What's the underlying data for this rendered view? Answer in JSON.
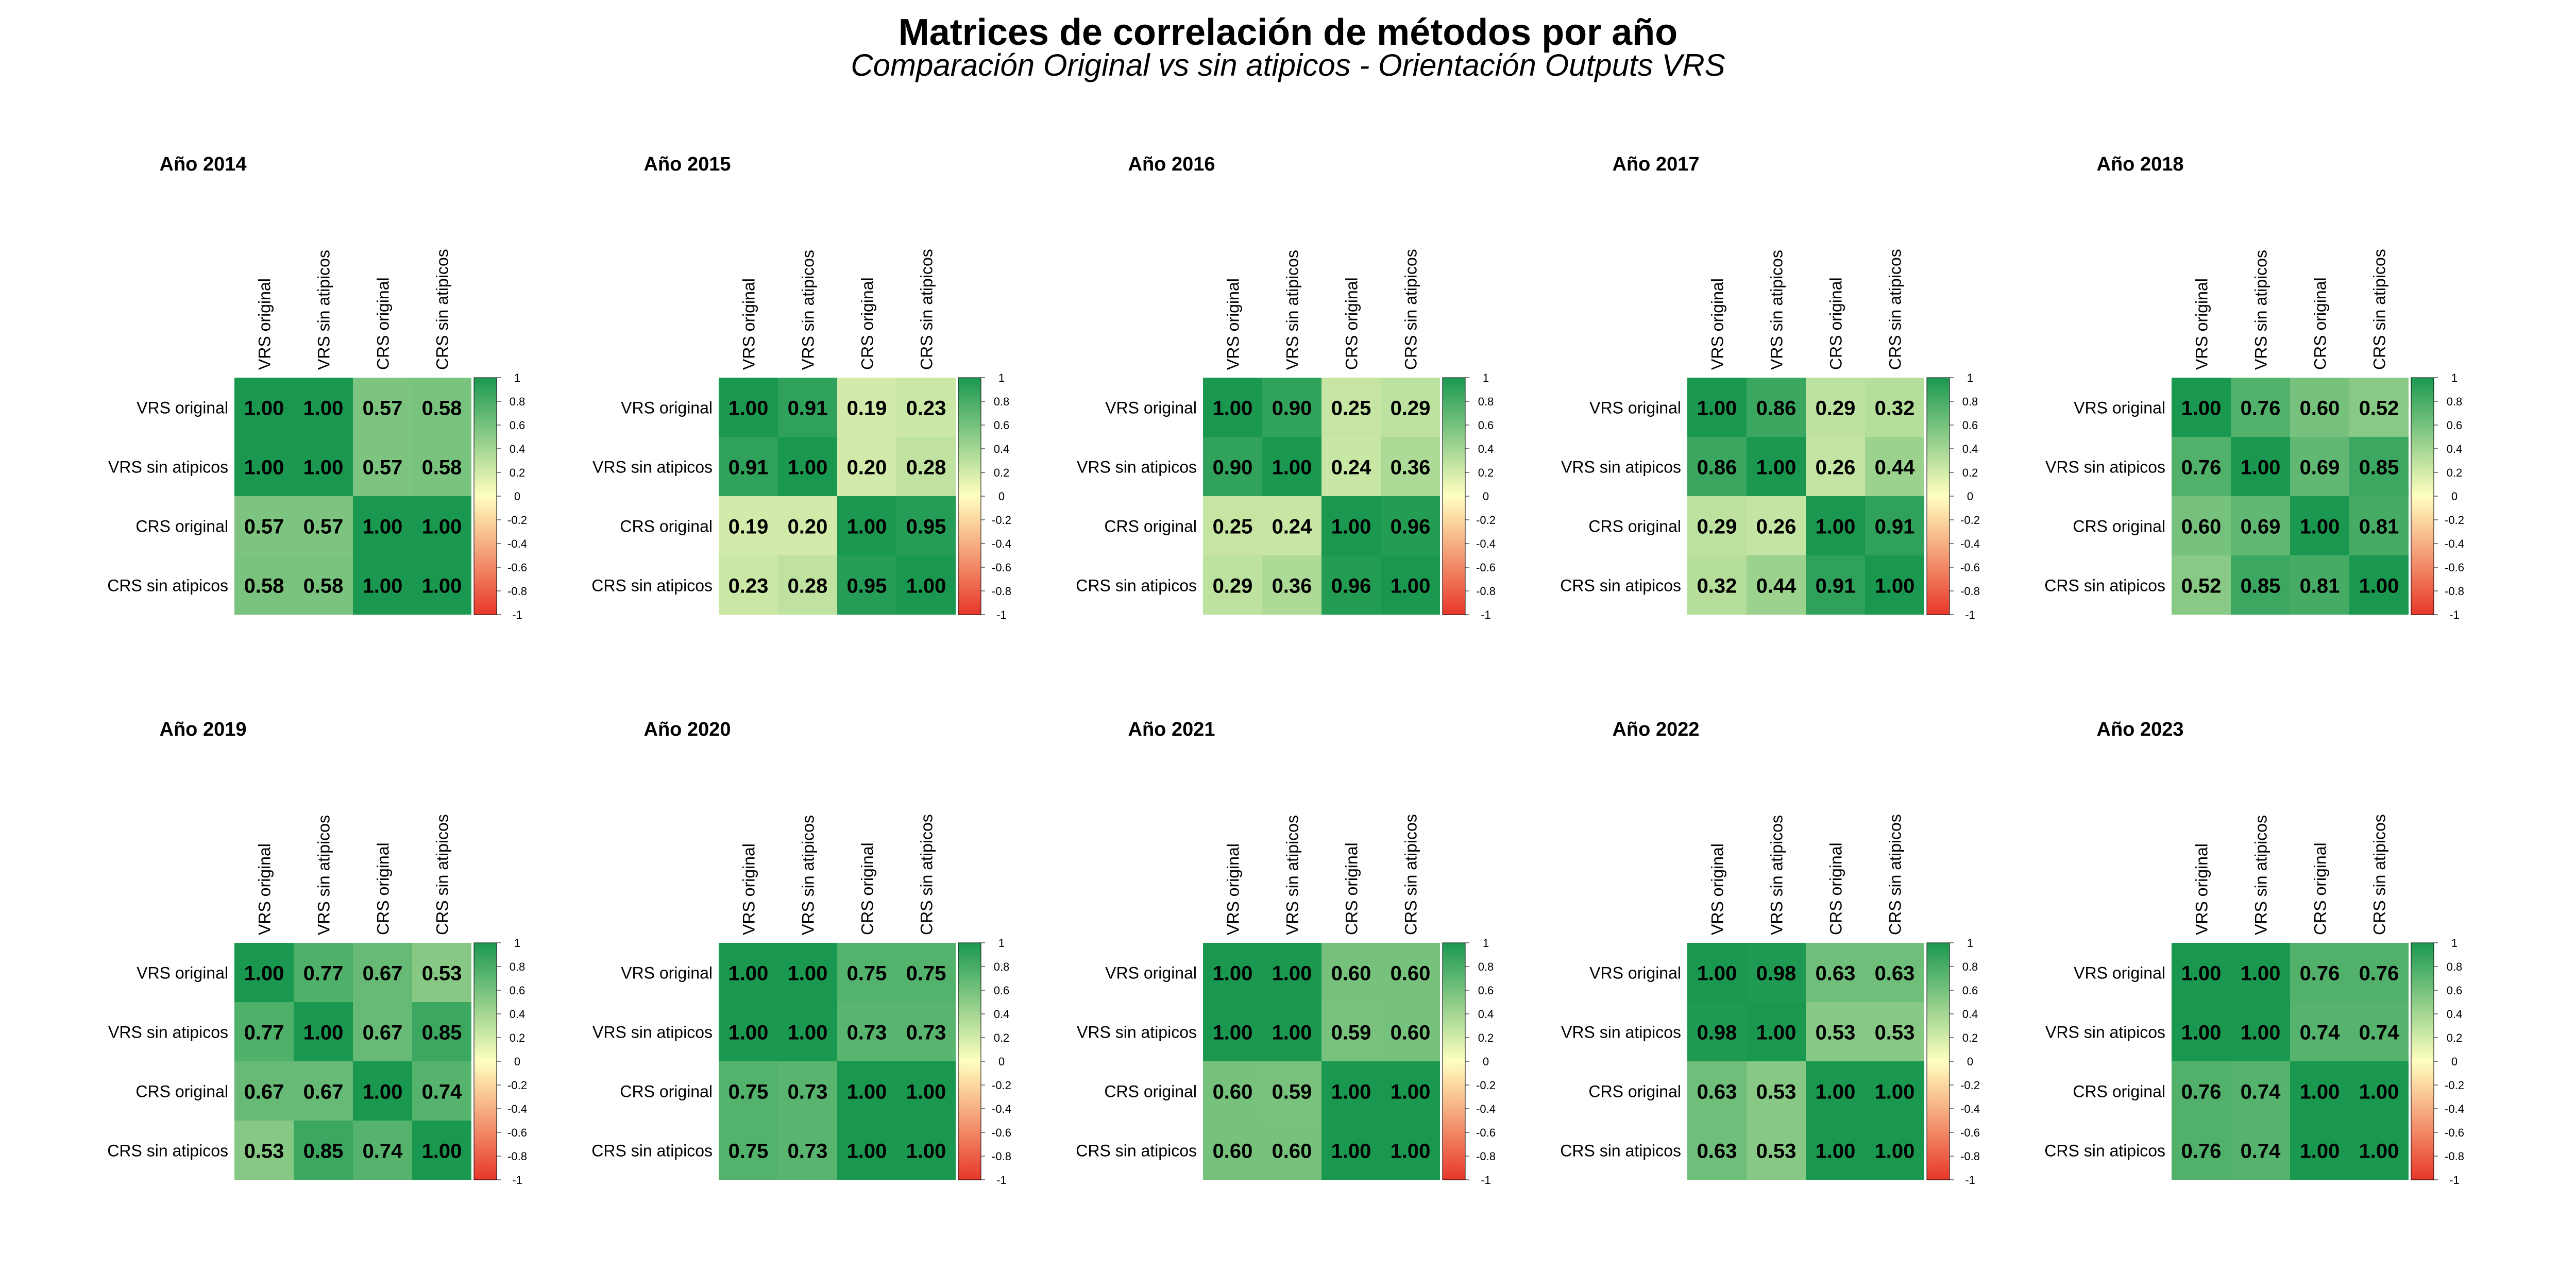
{
  "title": "Matrices de correlación de métodos por año",
  "subtitle": "Comparación Original vs sin atipicos - Orientación Outputs VRS",
  "colors": {
    "low": "#e8372a",
    "mid": "#ffffbf",
    "high": "#1a9850"
  },
  "colorbar_ticks": [
    "1",
    "0.8",
    "0.6",
    "0.4",
    "0.2",
    "0",
    "-0.2",
    "-0.4",
    "-0.6",
    "-0.8",
    "-1"
  ],
  "chart_data": [
    {
      "type": "heatmap",
      "title": "Año 2014",
      "labels": [
        "VRS original",
        "VRS sin atipicos",
        "CRS original",
        "CRS sin atipicos"
      ],
      "values": [
        [
          1.0,
          1.0,
          0.57,
          0.58
        ],
        [
          1.0,
          1.0,
          0.57,
          0.58
        ],
        [
          0.57,
          0.57,
          1.0,
          1.0
        ],
        [
          0.58,
          0.58,
          1.0,
          1.0
        ]
      ],
      "display": [
        [
          "1.00",
          "1.00",
          "0.57",
          "0.58"
        ],
        [
          "1.00",
          "1.00",
          "0.57",
          "0.58"
        ],
        [
          "0.57",
          "0.57",
          "1.00",
          "1.00"
        ],
        [
          "0.58",
          "0.58",
          "1.00",
          "1.00"
        ]
      ],
      "colorbar_range": [
        -1,
        1
      ]
    },
    {
      "type": "heatmap",
      "title": "Año 2015",
      "labels": [
        "VRS original",
        "VRS sin atipicos",
        "CRS original",
        "CRS sin atipicos"
      ],
      "values": [
        [
          1.0,
          0.91,
          0.19,
          0.23
        ],
        [
          0.91,
          1.0,
          0.2,
          0.28
        ],
        [
          0.19,
          0.2,
          1.0,
          0.95
        ],
        [
          0.23,
          0.28,
          0.95,
          1.0
        ]
      ],
      "display": [
        [
          "1.00",
          "0.91",
          "0.19",
          "0.23"
        ],
        [
          "0.91",
          "1.00",
          "0.20",
          "0.28"
        ],
        [
          "0.19",
          "0.20",
          "1.00",
          "0.95"
        ],
        [
          "0.23",
          "0.28",
          "0.95",
          "1.00"
        ]
      ],
      "colorbar_range": [
        -1,
        1
      ]
    },
    {
      "type": "heatmap",
      "title": "Año 2016",
      "labels": [
        "VRS original",
        "VRS sin atipicos",
        "CRS original",
        "CRS sin atipicos"
      ],
      "values": [
        [
          1.0,
          0.9,
          0.25,
          0.29
        ],
        [
          0.9,
          1.0,
          0.24,
          0.36
        ],
        [
          0.25,
          0.24,
          1.0,
          0.96
        ],
        [
          0.29,
          0.36,
          0.96,
          1.0
        ]
      ],
      "display": [
        [
          "1.00",
          "0.90",
          "0.25",
          "0.29"
        ],
        [
          "0.90",
          "1.00",
          "0.24",
          "0.36"
        ],
        [
          "0.25",
          "0.24",
          "1.00",
          "0.96"
        ],
        [
          "0.29",
          "0.36",
          "0.96",
          "1.00"
        ]
      ],
      "colorbar_range": [
        -1,
        1
      ]
    },
    {
      "type": "heatmap",
      "title": "Año 2017",
      "labels": [
        "VRS original",
        "VRS sin atipicos",
        "CRS original",
        "CRS sin atipicos"
      ],
      "values": [
        [
          1.0,
          0.86,
          0.29,
          0.32
        ],
        [
          0.86,
          1.0,
          0.26,
          0.44
        ],
        [
          0.29,
          0.26,
          1.0,
          0.91
        ],
        [
          0.32,
          0.44,
          0.91,
          1.0
        ]
      ],
      "display": [
        [
          "1.00",
          "0.86",
          "0.29",
          "0.32"
        ],
        [
          "0.86",
          "1.00",
          "0.26",
          "0.44"
        ],
        [
          "0.29",
          "0.26",
          "1.00",
          "0.91"
        ],
        [
          "0.32",
          "0.44",
          "0.91",
          "1.00"
        ]
      ],
      "colorbar_range": [
        -1,
        1
      ]
    },
    {
      "type": "heatmap",
      "title": "Año 2018",
      "labels": [
        "VRS original",
        "VRS sin atipicos",
        "CRS original",
        "CRS sin atipicos"
      ],
      "values": [
        [
          1.0,
          0.76,
          0.6,
          0.52
        ],
        [
          0.76,
          1.0,
          0.69,
          0.85
        ],
        [
          0.6,
          0.69,
          1.0,
          0.81
        ],
        [
          0.52,
          0.85,
          0.81,
          1.0
        ]
      ],
      "display": [
        [
          "1.00",
          "0.76",
          "0.60",
          "0.52"
        ],
        [
          "0.76",
          "1.00",
          "0.69",
          "0.85"
        ],
        [
          "0.60",
          "0.69",
          "1.00",
          "0.81"
        ],
        [
          "0.52",
          "0.85",
          "0.81",
          "1.00"
        ]
      ],
      "colorbar_range": [
        -1,
        1
      ]
    },
    {
      "type": "heatmap",
      "title": "Año 2019",
      "labels": [
        "VRS original",
        "VRS sin atipicos",
        "CRS original",
        "CRS sin atipicos"
      ],
      "values": [
        [
          1.0,
          0.77,
          0.67,
          0.53
        ],
        [
          0.77,
          1.0,
          0.67,
          0.85
        ],
        [
          0.67,
          0.67,
          1.0,
          0.74
        ],
        [
          0.53,
          0.85,
          0.74,
          1.0
        ]
      ],
      "display": [
        [
          "1.00",
          "0.77",
          "0.67",
          "0.53"
        ],
        [
          "0.77",
          "1.00",
          "0.67",
          "0.85"
        ],
        [
          "0.67",
          "0.67",
          "1.00",
          "0.74"
        ],
        [
          "0.53",
          "0.85",
          "0.74",
          "1.00"
        ]
      ],
      "colorbar_range": [
        -1,
        1
      ]
    },
    {
      "type": "heatmap",
      "title": "Año 2020",
      "labels": [
        "VRS original",
        "VRS sin atipicos",
        "CRS original",
        "CRS sin atipicos"
      ],
      "values": [
        [
          1.0,
          1.0,
          0.75,
          0.75
        ],
        [
          1.0,
          1.0,
          0.73,
          0.73
        ],
        [
          0.75,
          0.73,
          1.0,
          1.0
        ],
        [
          0.75,
          0.73,
          1.0,
          1.0
        ]
      ],
      "display": [
        [
          "1.00",
          "1.00",
          "0.75",
          "0.75"
        ],
        [
          "1.00",
          "1.00",
          "0.73",
          "0.73"
        ],
        [
          "0.75",
          "0.73",
          "1.00",
          "1.00"
        ],
        [
          "0.75",
          "0.73",
          "1.00",
          "1.00"
        ]
      ],
      "colorbar_range": [
        -1,
        1
      ]
    },
    {
      "type": "heatmap",
      "title": "Año 2021",
      "labels": [
        "VRS original",
        "VRS sin atipicos",
        "CRS original",
        "CRS sin atipicos"
      ],
      "values": [
        [
          1.0,
          1.0,
          0.6,
          0.6
        ],
        [
          1.0,
          1.0,
          0.59,
          0.6
        ],
        [
          0.6,
          0.59,
          1.0,
          1.0
        ],
        [
          0.6,
          0.6,
          1.0,
          1.0
        ]
      ],
      "display": [
        [
          "1.00",
          "1.00",
          "0.60",
          "0.60"
        ],
        [
          "1.00",
          "1.00",
          "0.59",
          "0.60"
        ],
        [
          "0.60",
          "0.59",
          "1.00",
          "1.00"
        ],
        [
          "0.60",
          "0.60",
          "1.00",
          "1.00"
        ]
      ],
      "colorbar_range": [
        -1,
        1
      ]
    },
    {
      "type": "heatmap",
      "title": "Año 2022",
      "labels": [
        "VRS original",
        "VRS sin atipicos",
        "CRS original",
        "CRS sin atipicos"
      ],
      "values": [
        [
          1.0,
          0.98,
          0.63,
          0.63
        ],
        [
          0.98,
          1.0,
          0.53,
          0.53
        ],
        [
          0.63,
          0.53,
          1.0,
          1.0
        ],
        [
          0.63,
          0.53,
          1.0,
          1.0
        ]
      ],
      "display": [
        [
          "1.00",
          "0.98",
          "0.63",
          "0.63"
        ],
        [
          "0.98",
          "1.00",
          "0.53",
          "0.53"
        ],
        [
          "0.63",
          "0.53",
          "1.00",
          "1.00"
        ],
        [
          "0.63",
          "0.53",
          "1.00",
          "1.00"
        ]
      ],
      "colorbar_range": [
        -1,
        1
      ]
    },
    {
      "type": "heatmap",
      "title": "Año 2023",
      "labels": [
        "VRS original",
        "VRS sin atipicos",
        "CRS original",
        "CRS sin atipicos"
      ],
      "values": [
        [
          1.0,
          1.0,
          0.76,
          0.76
        ],
        [
          1.0,
          1.0,
          0.74,
          0.74
        ],
        [
          0.76,
          0.74,
          1.0,
          1.0
        ],
        [
          0.76,
          0.74,
          1.0,
          1.0
        ]
      ],
      "display": [
        [
          "1.00",
          "1.00",
          "0.76",
          "0.76"
        ],
        [
          "1.00",
          "1.00",
          "0.74",
          "0.74"
        ],
        [
          "0.76",
          "0.74",
          "1.00",
          "1.00"
        ],
        [
          "0.76",
          "0.74",
          "1.00",
          "1.00"
        ]
      ],
      "colorbar_range": [
        -1,
        1
      ]
    }
  ]
}
